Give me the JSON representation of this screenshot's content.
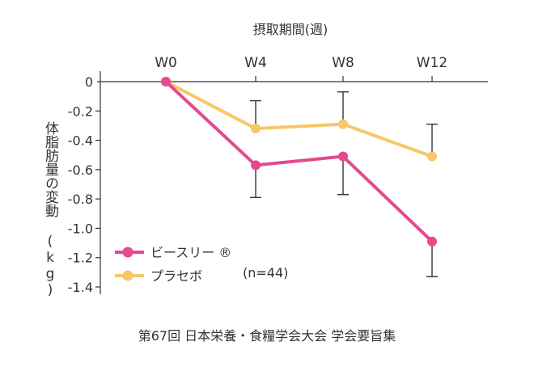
{
  "chart_data": {
    "type": "line",
    "title": "",
    "xlabel": "摂取期間(週)",
    "ylabel": "体脂肪量の変動 (kg)",
    "categories": [
      "W0",
      "W4",
      "W8",
      "W12"
    ],
    "ylim": [
      -1.4,
      0
    ],
    "yticks": [
      "0",
      "-0.2",
      "-0.4",
      "-0.6",
      "-0.8",
      "-1.0",
      "-1.2",
      "-1.4"
    ],
    "grid": false,
    "legend_position": "bottom-left",
    "series": [
      {
        "name": "ビースリー ®",
        "color": "#e5498f",
        "values": [
          0,
          -0.57,
          -0.51,
          -1.09
        ],
        "error_low": [
          null,
          -0.79,
          -0.77,
          -1.33
        ],
        "error_high": [
          null,
          null,
          null,
          null
        ]
      },
      {
        "name": "プラセボ",
        "color": "#f7c766",
        "values": [
          0,
          -0.32,
          -0.29,
          -0.51
        ],
        "error_low": [
          null,
          null,
          null,
          null
        ],
        "error_high": [
          null,
          -0.13,
          -0.07,
          -0.29
        ]
      }
    ],
    "annotation": "(n=44)"
  },
  "caption": "第67回 日本栄養・食糧学会大会 学会要旨集"
}
